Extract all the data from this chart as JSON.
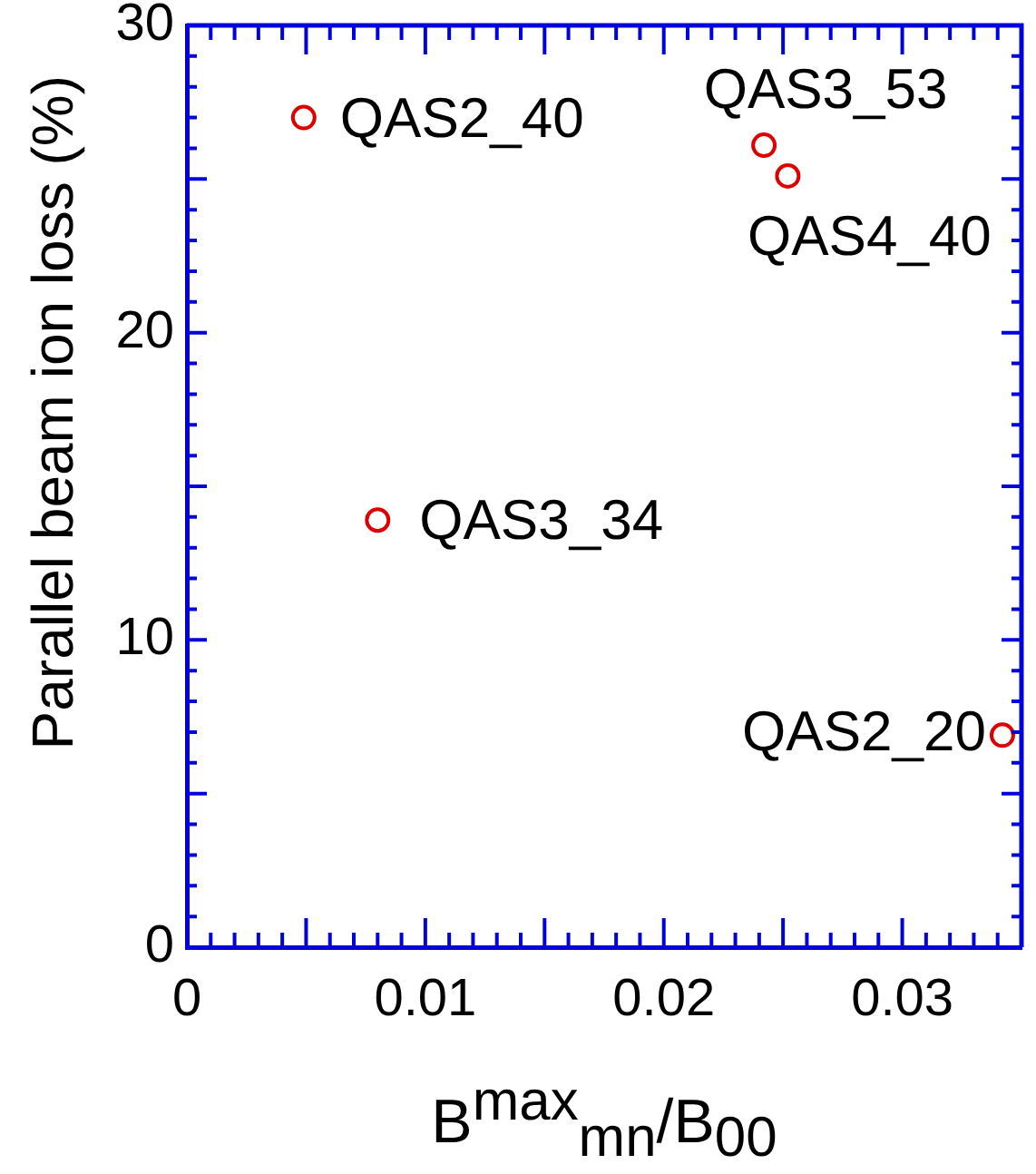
{
  "chart_data": {
    "type": "scatter",
    "xlabel": "B$^{max}$$_{mn}$/B$_{00}$",
    "ylabel": "Parallel beam ion loss (%)",
    "x": [
      0.0049,
      0.008,
      0.0242,
      0.0252,
      0.0342
    ],
    "series": [
      {
        "color": "#dd0000",
        "values": [
          27.0,
          13.9,
          26.1,
          25.1,
          6.9
        ]
      }
    ],
    "marker": "circle",
    "xlim": [
      0,
      0.035
    ],
    "xticks": [
      0,
      {
        "value": 0.005,
        "label": null
      },
      0.01,
      {
        "value": 0.015,
        "label": null
      },
      0.02,
      {
        "value": 0.025,
        "label": null
      },
      0.03
    ],
    "ylim": [
      0,
      30
    ],
    "yticks": [
      0,
      {
        "value": 5,
        "label": null
      },
      10,
      {
        "value": 15,
        "label": null
      },
      20,
      {
        "value": 25,
        "label": null
      },
      30
    ],
    "annotations": [
      {
        "text": "QAS2_40",
        "x": 0.0049,
        "y": 27.0
      },
      {
        "text": "QAS3_34",
        "x": 0.008,
        "y": 13.9
      },
      {
        "text": "QAS3_53",
        "x": 0.0242,
        "y": 26.1
      },
      {
        "text": "QAS4_40",
        "x": 0.0252,
        "y": 25.1
      },
      {
        "text": "QAS2_20",
        "x": 0.0342,
        "y": 6.9
      }
    ]
  }
}
